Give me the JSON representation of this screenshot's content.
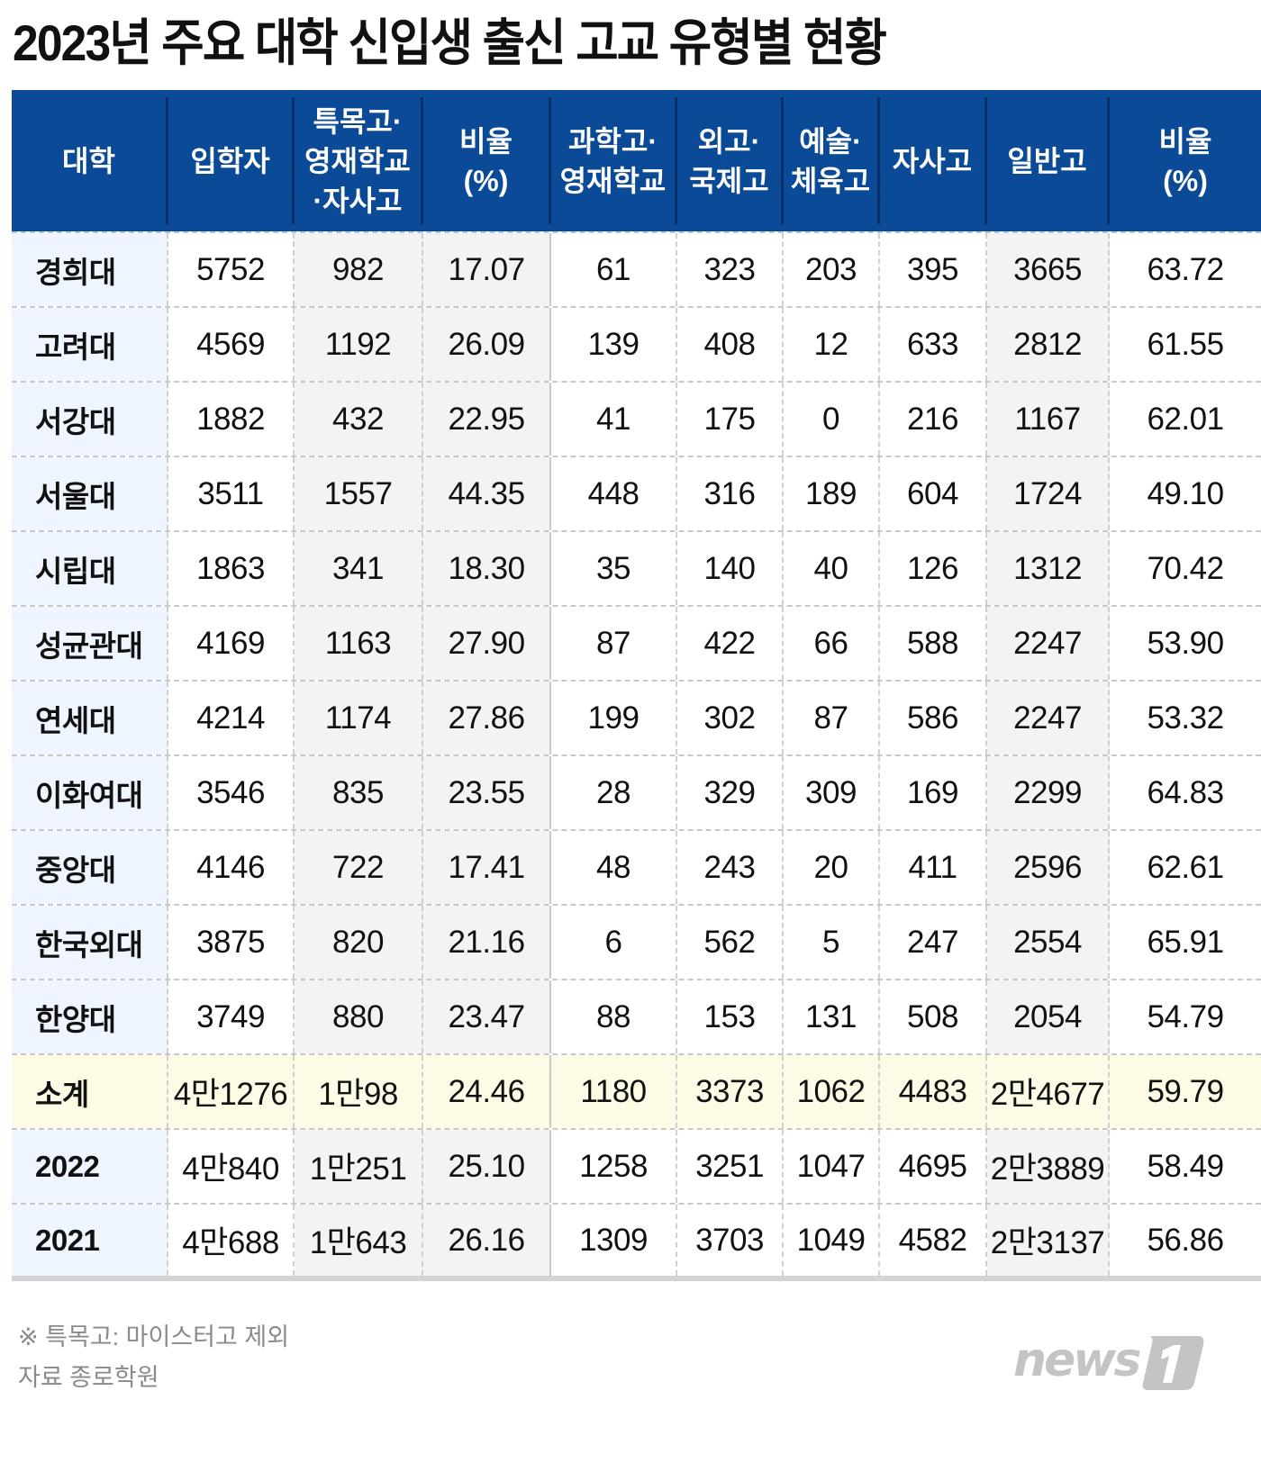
{
  "title": "2023년 주요 대학 신입생 출신 고교 유형별 현황",
  "table": {
    "headers": [
      "대학",
      "입학자",
      "특목고·\n영재학교\n·자사고",
      "비율\n(%)",
      "과학고·\n영재학교",
      "외고·\n국제고",
      "예술·\n체육고",
      "자사고",
      "일반고",
      "비율\n(%)"
    ],
    "rows": [
      {
        "name": "경희대",
        "values": [
          "5752",
          "982",
          "17.07",
          "61",
          "323",
          "203",
          "395",
          "3665",
          "63.72"
        ]
      },
      {
        "name": "고려대",
        "values": [
          "4569",
          "1192",
          "26.09",
          "139",
          "408",
          "12",
          "633",
          "2812",
          "61.55"
        ]
      },
      {
        "name": "서강대",
        "values": [
          "1882",
          "432",
          "22.95",
          "41",
          "175",
          "0",
          "216",
          "1167",
          "62.01"
        ]
      },
      {
        "name": "서울대",
        "values": [
          "3511",
          "1557",
          "44.35",
          "448",
          "316",
          "189",
          "604",
          "1724",
          "49.10"
        ]
      },
      {
        "name": "시립대",
        "values": [
          "1863",
          "341",
          "18.30",
          "35",
          "140",
          "40",
          "126",
          "1312",
          "70.42"
        ]
      },
      {
        "name": "성균관대",
        "values": [
          "4169",
          "1163",
          "27.90",
          "87",
          "422",
          "66",
          "588",
          "2247",
          "53.90"
        ]
      },
      {
        "name": "연세대",
        "values": [
          "4214",
          "1174",
          "27.86",
          "199",
          "302",
          "87",
          "586",
          "2247",
          "53.32"
        ]
      },
      {
        "name": "이화여대",
        "values": [
          "3546",
          "835",
          "23.55",
          "28",
          "329",
          "309",
          "169",
          "2299",
          "64.83"
        ]
      },
      {
        "name": "중앙대",
        "values": [
          "4146",
          "722",
          "17.41",
          "48",
          "243",
          "20",
          "411",
          "2596",
          "62.61"
        ]
      },
      {
        "name": "한국외대",
        "values": [
          "3875",
          "820",
          "21.16",
          "6",
          "562",
          "5",
          "247",
          "2554",
          "65.91"
        ]
      },
      {
        "name": "한양대",
        "values": [
          "3749",
          "880",
          "23.47",
          "88",
          "153",
          "131",
          "508",
          "2054",
          "54.79"
        ]
      },
      {
        "name": "소계",
        "values": [
          "4만1276",
          "1만98",
          "24.46",
          "1180",
          "3373",
          "1062",
          "4483",
          "2만4677",
          "59.79"
        ]
      },
      {
        "name": "2022",
        "values": [
          "4만840",
          "1만251",
          "25.10",
          "1258",
          "3251",
          "1047",
          "4695",
          "2만3889",
          "58.49"
        ]
      },
      {
        "name": "2021",
        "values": [
          "4만688",
          "1만643",
          "26.16",
          "1309",
          "3703",
          "1049",
          "4582",
          "2만3137",
          "56.86"
        ]
      }
    ]
  },
  "footnote": "※ 특목고: 마이스터고 제외",
  "source": "자료 종로학원",
  "logo": {
    "text": "news",
    "mark": "1"
  },
  "colors": {
    "header_bg": "#0b4a97",
    "name_col_bg": "#eef5ff",
    "shaded_col_bg": "#f3f3f3",
    "subtotal_bg": "#fdfbe6",
    "footer_text": "#8a8a8a",
    "logo": "#c4c4c4"
  }
}
